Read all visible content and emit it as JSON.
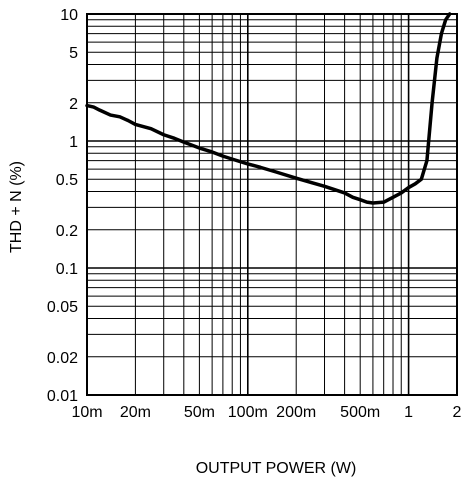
{
  "chart_data": {
    "type": "line",
    "title": "",
    "xlabel": "OUTPUT POWER (W)",
    "ylabel": "THD + N (%)",
    "xscale": "log",
    "yscale": "log",
    "xlim": [
      0.01,
      2
    ],
    "ylim": [
      0.01,
      10
    ],
    "grid": true,
    "line_color": "#000000",
    "grid_color": "#000000",
    "x_ticks": [
      {
        "value": 0.01,
        "label": "10m"
      },
      {
        "value": 0.02,
        "label": "20m"
      },
      {
        "value": 0.05,
        "label": "50m"
      },
      {
        "value": 0.1,
        "label": "100m"
      },
      {
        "value": 0.2,
        "label": "200m"
      },
      {
        "value": 0.5,
        "label": "500m"
      },
      {
        "value": 1,
        "label": "1"
      },
      {
        "value": 2,
        "label": "2"
      }
    ],
    "y_ticks": [
      {
        "value": 0.01,
        "label": "0.01"
      },
      {
        "value": 0.02,
        "label": "0.02"
      },
      {
        "value": 0.05,
        "label": "0.05"
      },
      {
        "value": 0.1,
        "label": "0.1"
      },
      {
        "value": 0.2,
        "label": "0.2"
      },
      {
        "value": 0.5,
        "label": "0.5"
      },
      {
        "value": 1,
        "label": "1"
      },
      {
        "value": 2,
        "label": "2"
      },
      {
        "value": 5,
        "label": "5"
      },
      {
        "value": 10,
        "label": "10"
      }
    ],
    "series": [
      {
        "x": [
          0.01,
          0.011,
          0.012,
          0.014,
          0.016,
          0.018,
          0.02,
          0.025,
          0.03,
          0.035,
          0.04,
          0.05,
          0.06,
          0.07,
          0.08,
          0.1,
          0.12,
          0.15,
          0.2,
          0.25,
          0.3,
          0.4,
          0.45,
          0.5,
          0.55,
          0.6,
          0.7,
          0.8,
          0.9,
          1.0,
          1.1,
          1.2,
          1.3,
          1.4,
          1.5,
          1.6,
          1.7,
          1.8
        ],
        "y": [
          1.9,
          1.85,
          1.75,
          1.6,
          1.55,
          1.45,
          1.35,
          1.25,
          1.12,
          1.05,
          0.98,
          0.88,
          0.82,
          0.76,
          0.72,
          0.66,
          0.62,
          0.57,
          0.51,
          0.47,
          0.44,
          0.39,
          0.36,
          0.345,
          0.33,
          0.325,
          0.33,
          0.36,
          0.39,
          0.43,
          0.46,
          0.5,
          0.7,
          2.0,
          4.5,
          7.0,
          9.0,
          10.0
        ]
      }
    ]
  }
}
